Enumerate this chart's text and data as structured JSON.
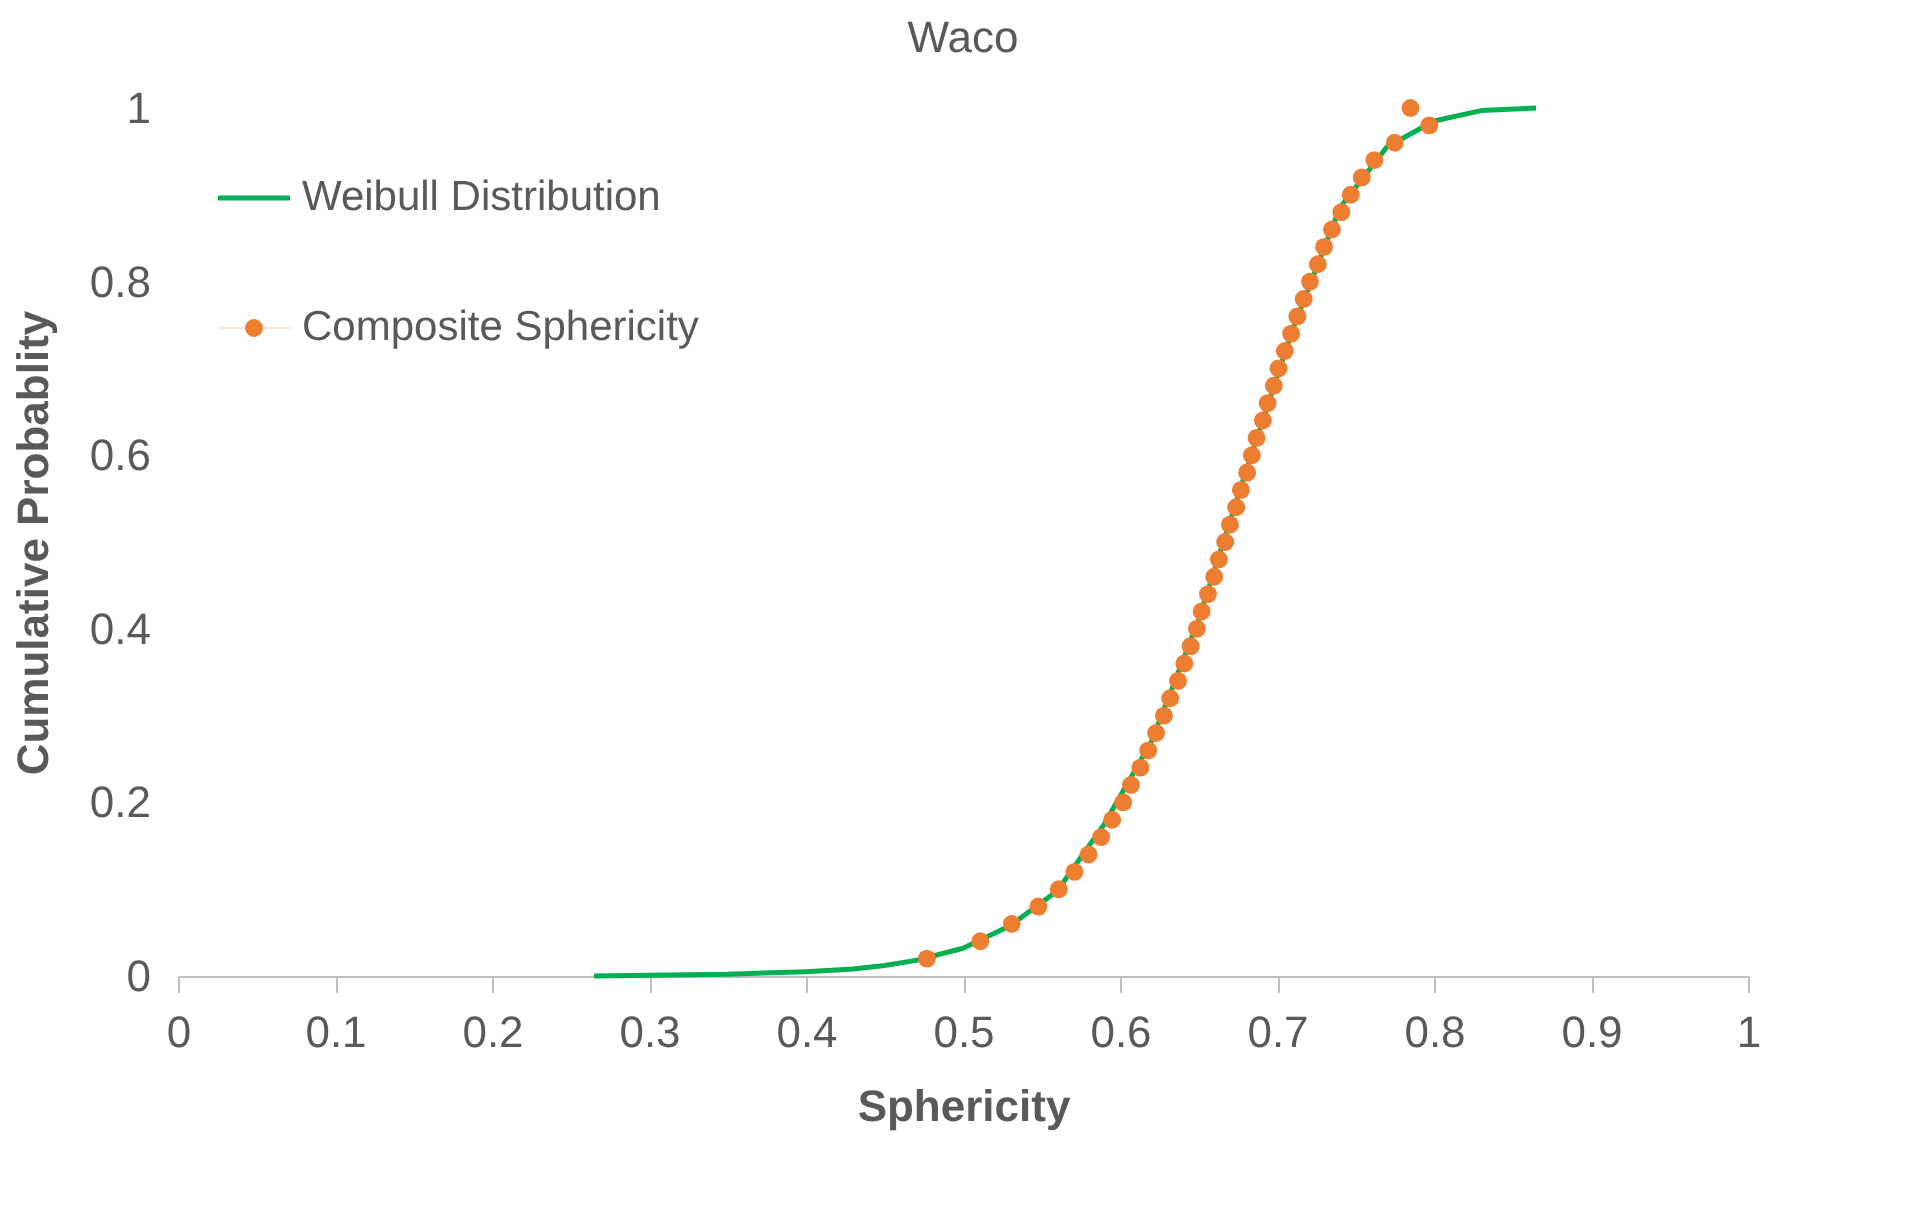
{
  "chart_data": {
    "type": "line",
    "title": "Waco",
    "xlabel": "Sphericity",
    "ylabel": "Cumulative Probablity",
    "xlim": [
      0,
      1
    ],
    "xticks": [
      0,
      0.1,
      0.2,
      0.3,
      0.4,
      0.5,
      0.6,
      0.7,
      0.8,
      0.9,
      1
    ],
    "ylim": [
      0,
      1
    ],
    "yticks": [
      0,
      0.2,
      0.4,
      0.6,
      0.8,
      1
    ],
    "grid": false,
    "legend": "top left",
    "series": [
      {
        "name": "Weibull Distribution",
        "type": "line",
        "color": "#00b050",
        "marker": "none",
        "x": [
          0.265,
          0.3,
          0.35,
          0.4,
          0.43,
          0.45,
          0.47,
          0.5,
          0.53,
          0.56,
          0.59,
          0.62,
          0.65,
          0.68,
          0.71,
          0.74,
          0.77,
          0.8,
          0.83,
          0.865
        ],
        "values": [
          0,
          0.001,
          0.002,
          0.005,
          0.008,
          0.012,
          0.018,
          0.032,
          0.058,
          0.098,
          0.175,
          0.27,
          0.41,
          0.58,
          0.745,
          0.885,
          0.955,
          0.985,
          0.997,
          1.0
        ]
      },
      {
        "name": "Composite Sphericity",
        "type": "scatter",
        "color": "#ed7d31",
        "marker": "circle",
        "x": [
          0.477,
          0.511,
          0.531,
          0.548,
          0.561,
          0.571,
          0.58,
          0.588,
          0.595,
          0.602,
          0.607,
          0.613,
          0.618,
          0.623,
          0.628,
          0.632,
          0.637,
          0.641,
          0.645,
          0.649,
          0.652,
          0.656,
          0.66,
          0.663,
          0.667,
          0.67,
          0.674,
          0.677,
          0.681,
          0.684,
          0.687,
          0.691,
          0.694,
          0.698,
          0.701,
          0.705,
          0.709,
          0.713,
          0.717,
          0.721,
          0.726,
          0.73,
          0.735,
          0.741,
          0.747,
          0.754,
          0.762,
          0.775,
          0.797,
          0.785
        ],
        "values": [
          0.02,
          0.04,
          0.06,
          0.08,
          0.1,
          0.12,
          0.14,
          0.16,
          0.18,
          0.2,
          0.22,
          0.24,
          0.26,
          0.28,
          0.3,
          0.32,
          0.34,
          0.36,
          0.38,
          0.4,
          0.42,
          0.44,
          0.46,
          0.48,
          0.5,
          0.52,
          0.54,
          0.56,
          0.58,
          0.6,
          0.62,
          0.64,
          0.66,
          0.68,
          0.7,
          0.72,
          0.74,
          0.76,
          0.78,
          0.8,
          0.82,
          0.84,
          0.86,
          0.88,
          0.9,
          0.92,
          0.94,
          0.96,
          0.98,
          1.0
        ]
      }
    ]
  }
}
